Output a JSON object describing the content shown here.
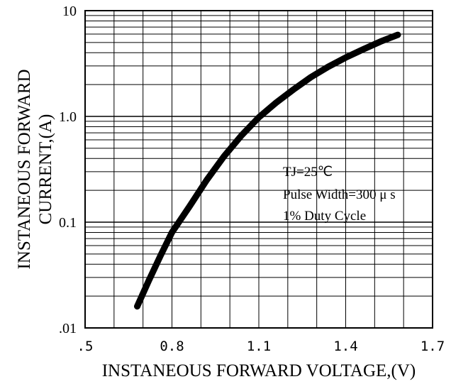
{
  "chart_data": {
    "type": "line",
    "title": "",
    "xlabel": "INSTANEOUS FORWARD VOLTAGE,(V)",
    "ylabel_lines": [
      "INSTANEOUS FORWARD",
      "CURRENT,(A)"
    ],
    "x_scale": "linear",
    "y_scale": "log",
    "xlim": [
      0.5,
      1.7
    ],
    "ylim": [
      0.01,
      10
    ],
    "x_ticks": [
      0.5,
      0.8,
      1.1,
      1.4,
      1.7
    ],
    "x_tick_labels": [
      ".5",
      "0.8",
      "1.1",
      "1.4",
      "1.7"
    ],
    "y_ticks": [
      0.01,
      0.1,
      1.0,
      10
    ],
    "y_tick_labels": [
      ".01",
      "0.1",
      "1.0",
      "10"
    ],
    "grid": true,
    "annotations": [
      "TJ=25℃",
      "Pulse Width=300 μ s",
      "1% Duty Cycle"
    ],
    "series": [
      {
        "color": "#000000",
        "x": [
          0.68,
          0.72,
          0.76,
          0.8,
          0.86,
          0.92,
          0.98,
          1.04,
          1.1,
          1.16,
          1.22,
          1.28,
          1.34,
          1.4,
          1.46,
          1.52,
          1.58
        ],
        "y": [
          0.016,
          0.028,
          0.048,
          0.08,
          0.14,
          0.25,
          0.42,
          0.66,
          0.98,
          1.35,
          1.8,
          2.35,
          2.95,
          3.6,
          4.3,
          5.1,
          5.9
        ]
      }
    ]
  }
}
